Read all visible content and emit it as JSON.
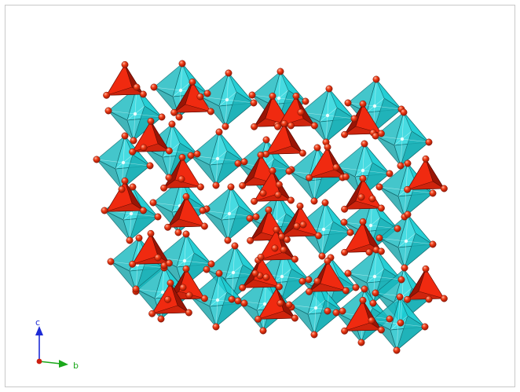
{
  "structure": {
    "polyhedra": {
      "octahedra_color": "#1fd3da",
      "octahedra_edge": "#0a5c60",
      "tetrahedra_color": "#f02a10",
      "tetrahedra_dark": "#8a1205",
      "atom_color": "#e8340f",
      "atom_highlight": "#ff9a7a",
      "cation_color": "#ffffff"
    }
  },
  "axes": {
    "c": {
      "label": "c",
      "color": "#1e2bd6"
    },
    "b": {
      "label": "b",
      "color": "#1aa81a"
    },
    "origin_color": "#cc1f10"
  }
}
